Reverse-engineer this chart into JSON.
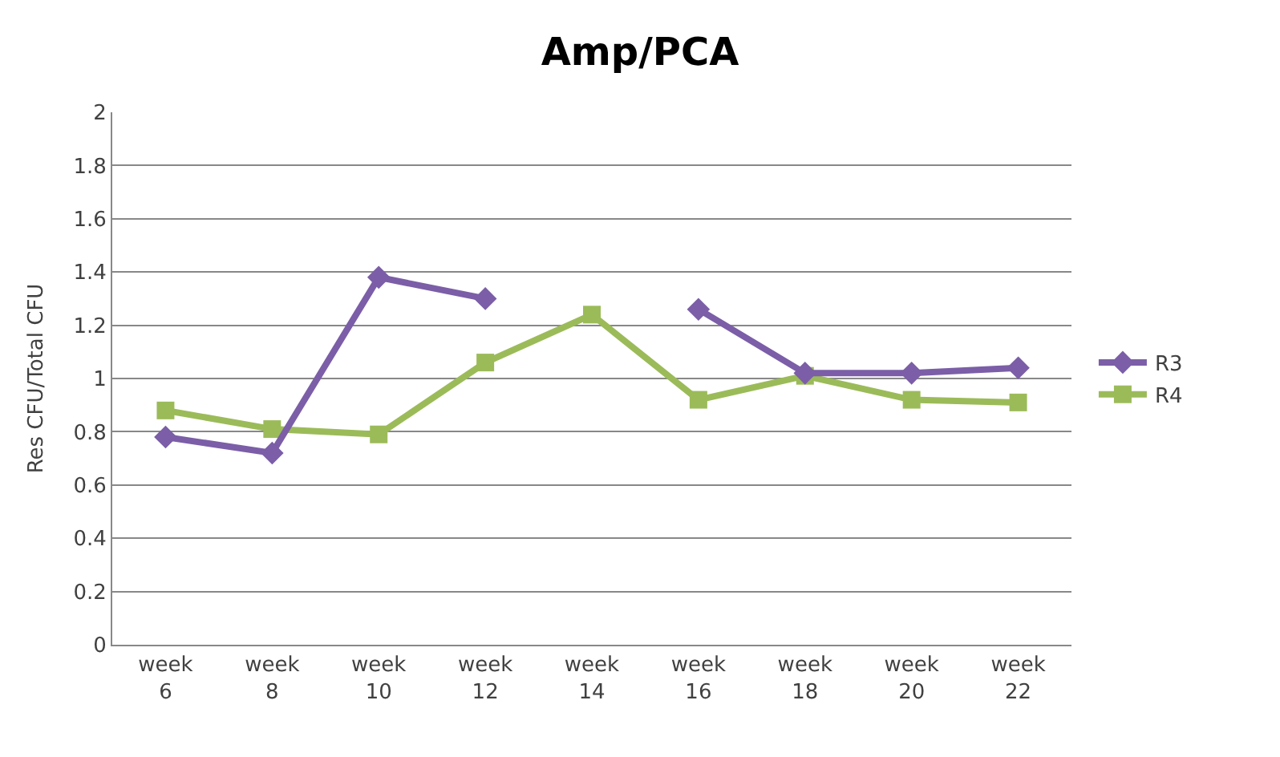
{
  "chart_data": {
    "type": "line",
    "title": "Amp/PCA",
    "ylabel": "Res CFU/Total CFU",
    "categories": [
      "week 6",
      "week 8",
      "week 10",
      "week 12",
      "week 14",
      "week 16",
      "week 18",
      "week 20",
      "week 22"
    ],
    "series": [
      {
        "name": "R3",
        "color": "#7b5ea7",
        "marker": "diamond",
        "values": [
          0.78,
          0.72,
          1.38,
          1.3,
          null,
          1.26,
          1.02,
          1.02,
          1.04
        ]
      },
      {
        "name": "R4",
        "color": "#9bbb59",
        "marker": "square",
        "values": [
          0.88,
          0.81,
          0.79,
          1.06,
          1.24,
          0.92,
          1.01,
          0.92,
          0.91
        ]
      }
    ],
    "ylim": [
      0,
      2
    ],
    "yticks": [
      0,
      0.2,
      0.4,
      0.6,
      0.8,
      1,
      1.2,
      1.4,
      1.6,
      1.8,
      2
    ],
    "grid": "y",
    "legend": "right",
    "line_style": "solid"
  }
}
